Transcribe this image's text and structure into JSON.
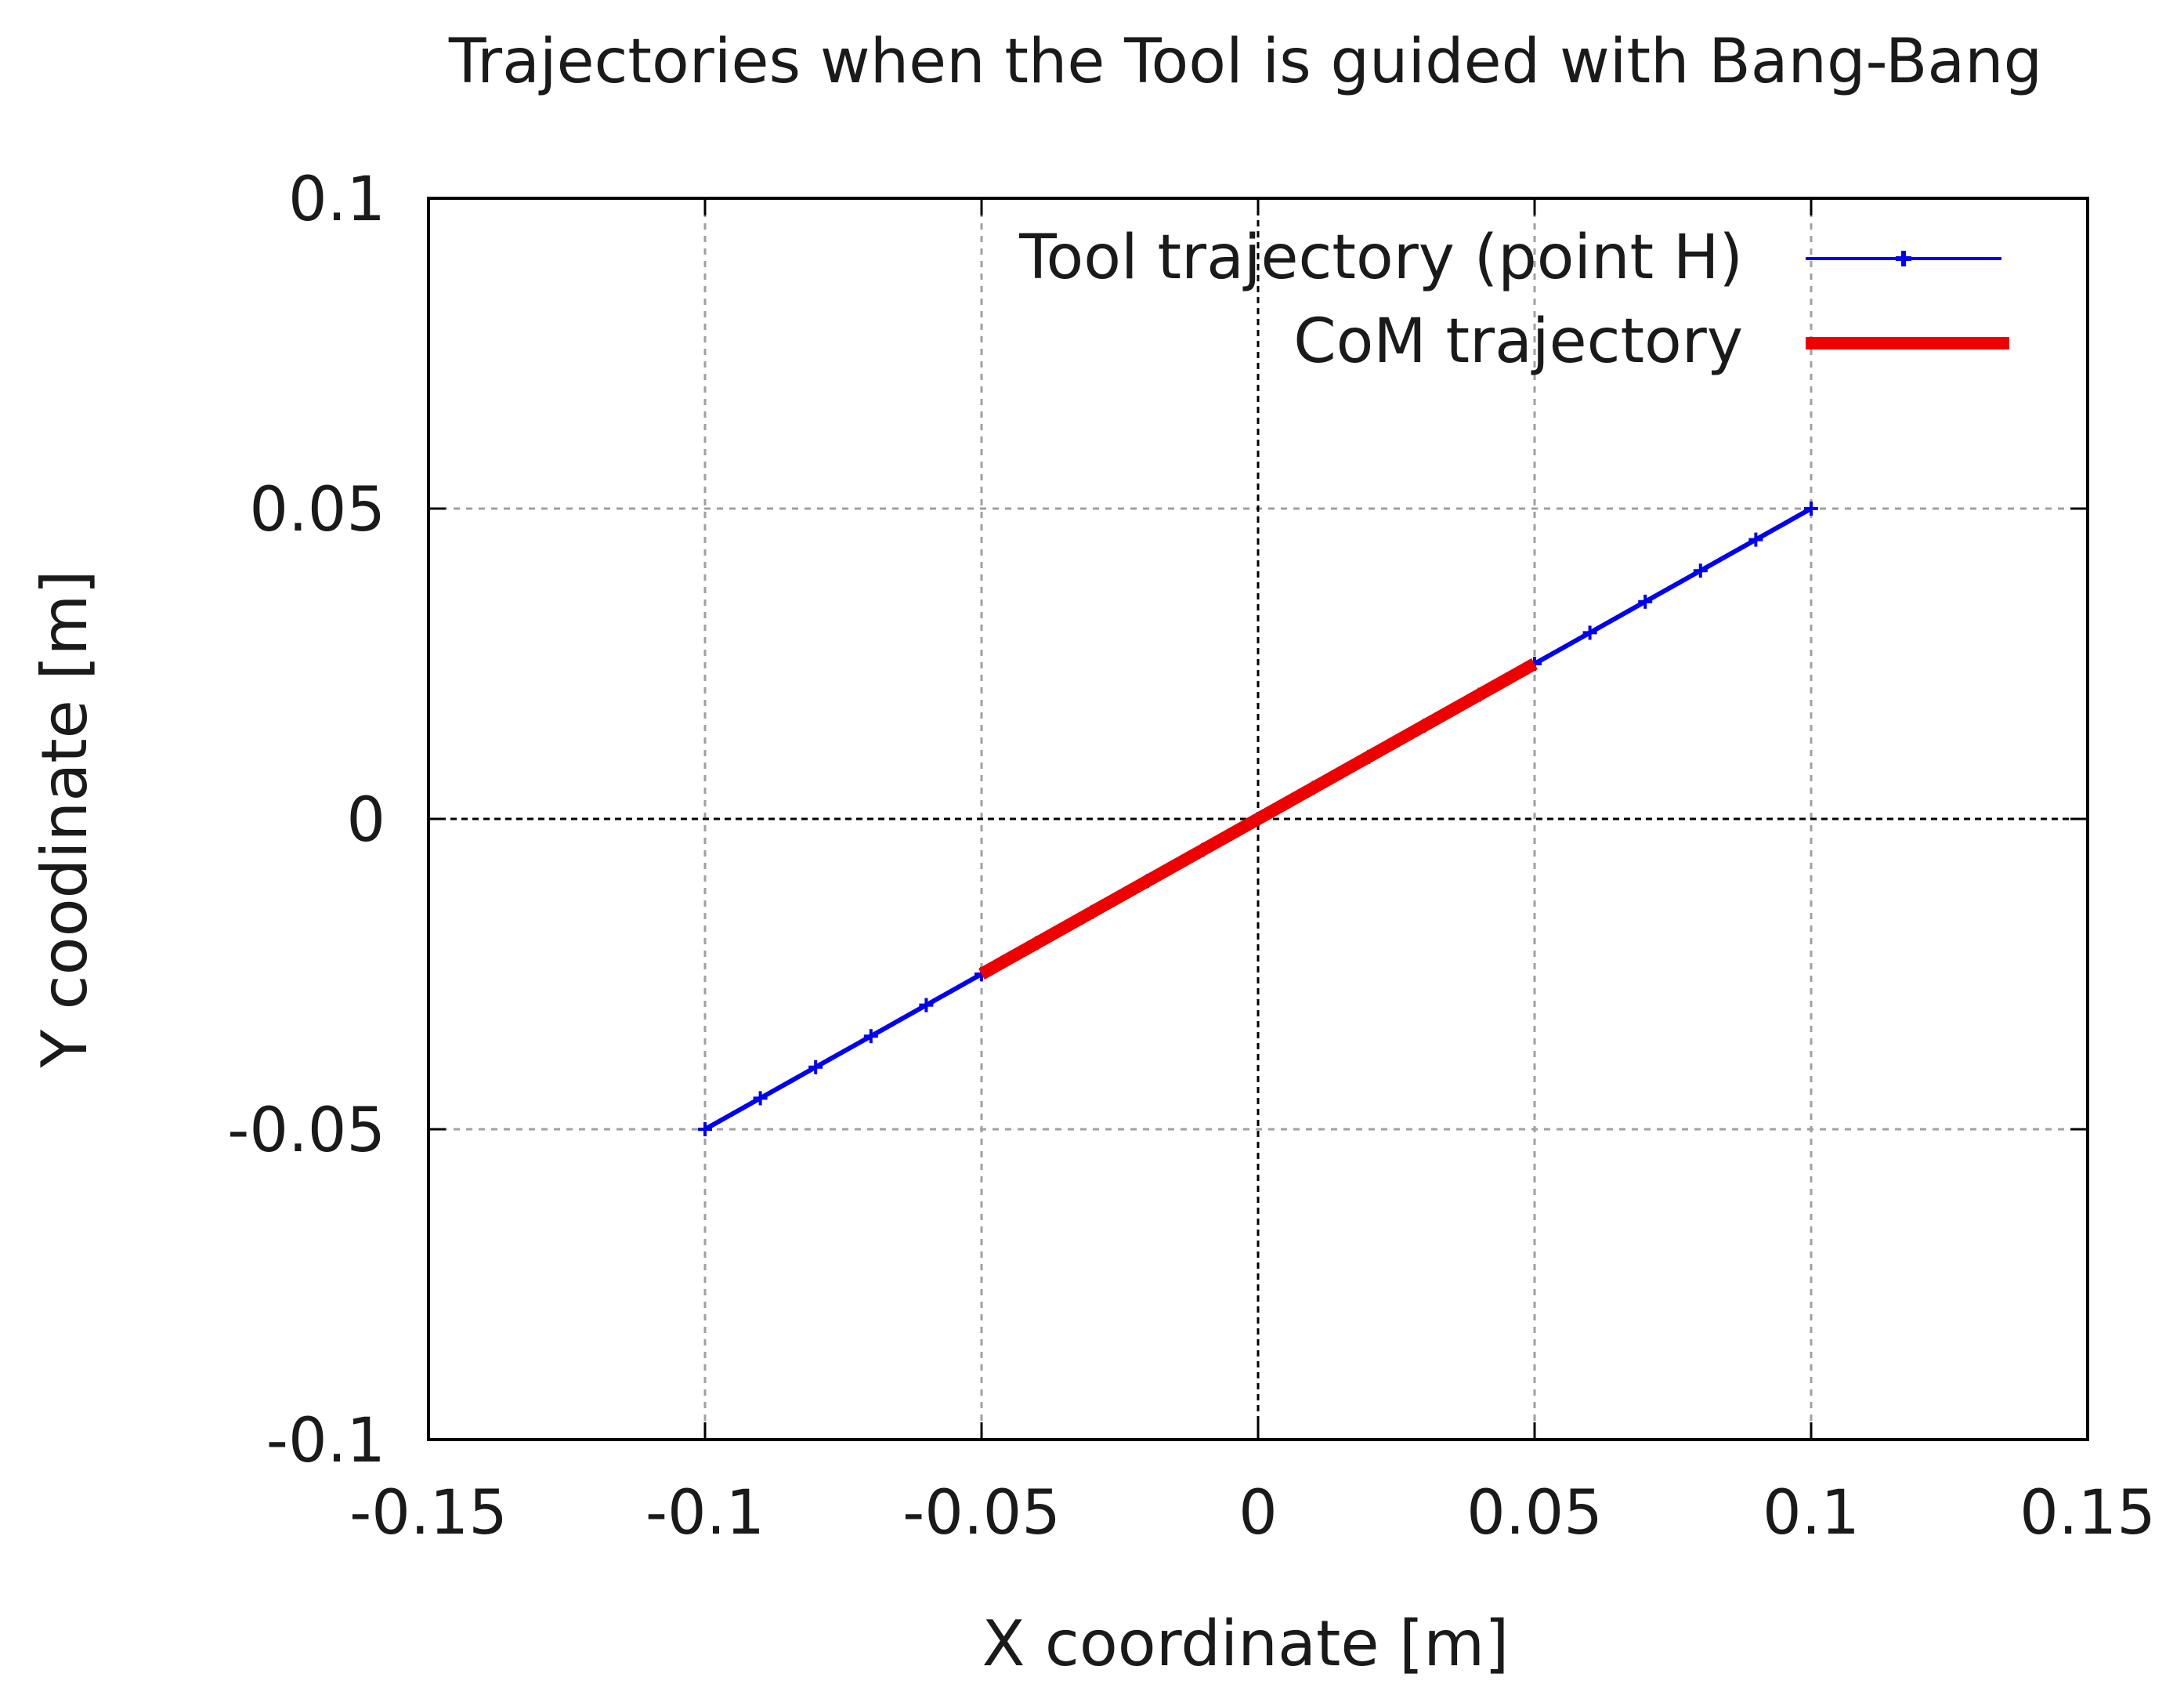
{
  "chart_data": {
    "type": "line",
    "title": "Trajectories when the Tool is guided with Bang-Bang",
    "xlabel": "X coordinate [m]",
    "ylabel": "Y coodinate [m]",
    "xlim": [
      -0.15,
      0.15
    ],
    "ylim": [
      -0.1,
      0.1
    ],
    "xticks": [
      -0.15,
      -0.1,
      -0.05,
      0,
      0.05,
      0.1,
      0.15
    ],
    "xtick_labels": [
      "-0.15",
      "-0.1",
      "-0.05",
      "0",
      "0.05",
      "0.1",
      "0.15"
    ],
    "yticks": [
      -0.1,
      -0.05,
      0,
      0.05,
      0.1
    ],
    "ytick_labels": [
      "-0.1",
      "-0.05",
      "0",
      "0.05",
      "0.1"
    ],
    "grid": true,
    "legend_position": "top-right",
    "series": [
      {
        "name": "Tool trajectory (point H)",
        "color": "#0000ee",
        "marker": "plus",
        "x": [
          -0.1,
          -0.09,
          -0.08,
          -0.07,
          -0.06,
          -0.05,
          -0.04,
          -0.03,
          -0.02,
          -0.01,
          0,
          0.01,
          0.02,
          0.03,
          0.04,
          0.05,
          0.06,
          0.07,
          0.08,
          0.09,
          0.1
        ],
        "y": [
          -0.05,
          -0.045,
          -0.04,
          -0.035,
          -0.03,
          -0.025,
          -0.02,
          -0.015,
          -0.01,
          -0.005,
          0,
          0.005,
          0.01,
          0.015,
          0.02,
          0.025,
          0.03,
          0.035,
          0.04,
          0.045,
          0.05
        ]
      },
      {
        "name": "CoM trajectory",
        "color": "#ee0000",
        "marker": "none",
        "x": [
          -0.05,
          -0.025,
          0,
          0.025,
          0.05
        ],
        "y": [
          -0.025,
          -0.0125,
          0,
          0.0125,
          0.025
        ]
      }
    ]
  }
}
